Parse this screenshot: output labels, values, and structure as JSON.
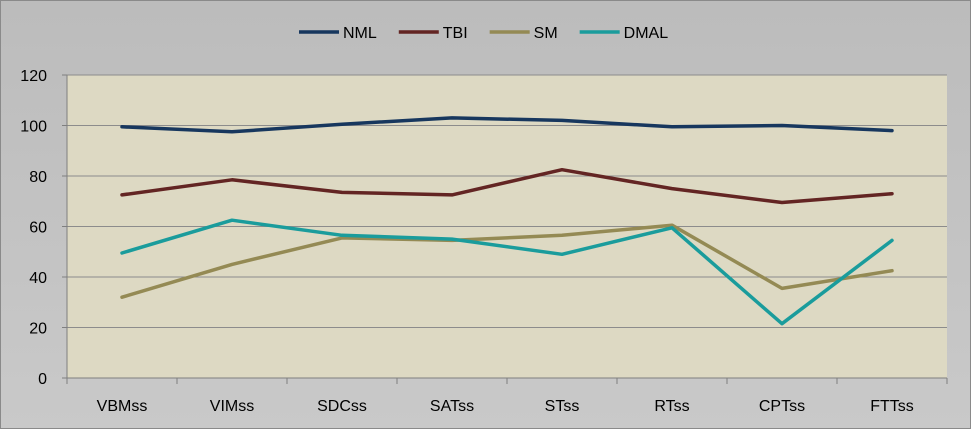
{
  "chart_data": {
    "type": "line",
    "categories": [
      "VBMss",
      "VIMss",
      "SDCss",
      "SATss",
      "STss",
      "RTss",
      "CPTss",
      "FTTss"
    ],
    "series": [
      {
        "name": "NML",
        "color": "#17375e",
        "values": [
          99.5,
          97.5,
          100.5,
          103,
          102,
          99.5,
          100,
          98
        ]
      },
      {
        "name": "TBI",
        "color": "#632523",
        "values": [
          72.5,
          78.5,
          73.5,
          72.5,
          82.5,
          75,
          69.5,
          73
        ]
      },
      {
        "name": "SM",
        "color": "#948a54",
        "values": [
          32,
          45,
          55.5,
          54.5,
          56.5,
          60.5,
          35.5,
          42.5
        ]
      },
      {
        "name": "DMAL",
        "color": "#1a9c9c",
        "values": [
          49.5,
          62.5,
          56.5,
          55,
          49,
          59.5,
          21.5,
          54.5
        ]
      }
    ],
    "ylim": [
      0,
      120
    ],
    "yticks": [
      0,
      20,
      40,
      60,
      80,
      100,
      120
    ],
    "grid": true,
    "legend": "top-center",
    "plot_background": "#ddd9c3"
  }
}
